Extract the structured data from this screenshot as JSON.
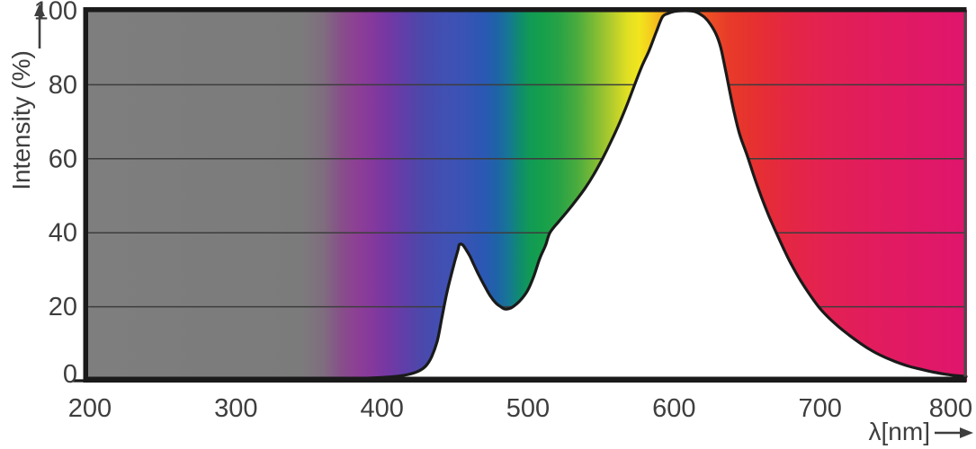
{
  "chart_data": {
    "type": "area",
    "x_axis": {
      "label": "λ[nm]",
      "ticks": [
        200,
        300,
        400,
        500,
        600,
        700,
        800
      ],
      "range": [
        200,
        800
      ]
    },
    "y_axis": {
      "label": "Intensity (%)",
      "ticks": [
        0,
        20,
        40,
        60,
        80,
        100
      ],
      "range": [
        0,
        100
      ]
    },
    "gridlines_at": [
      20,
      40,
      60,
      80
    ],
    "legend": "none",
    "series": [
      {
        "points": [
          [
            200,
            0
          ],
          [
            345,
            0
          ],
          [
            360,
            0.2
          ],
          [
            372,
            0.4
          ],
          [
            385,
            0.6
          ],
          [
            400,
            0.9
          ],
          [
            410,
            1.2
          ],
          [
            418,
            1.7
          ],
          [
            425,
            2.6
          ],
          [
            430,
            4
          ],
          [
            434,
            6.5
          ],
          [
            438,
            11
          ],
          [
            441,
            17
          ],
          [
            444,
            23
          ],
          [
            447,
            28
          ],
          [
            450,
            32.5
          ],
          [
            452,
            35.3
          ],
          [
            453,
            36.8
          ],
          [
            455,
            36.8
          ],
          [
            457,
            35.8
          ],
          [
            460,
            33.8
          ],
          [
            463,
            31.3
          ],
          [
            466,
            28.8
          ],
          [
            470,
            25.8
          ],
          [
            474,
            23
          ],
          [
            478,
            21
          ],
          [
            481,
            20.1
          ],
          [
            484,
            19.4
          ],
          [
            488,
            19.6
          ],
          [
            492,
            20.7
          ],
          [
            496,
            22.3
          ],
          [
            500,
            24.6
          ],
          [
            504,
            28.3
          ],
          [
            508,
            33
          ],
          [
            512,
            36.6
          ],
          [
            515,
            40
          ],
          [
            521,
            43
          ],
          [
            527,
            45.8
          ],
          [
            533,
            48.8
          ],
          [
            539,
            52
          ],
          [
            545,
            55.7
          ],
          [
            551,
            60
          ],
          [
            557,
            64.8
          ],
          [
            563,
            70
          ],
          [
            568,
            74.8
          ],
          [
            573,
            80
          ],
          [
            578,
            85
          ],
          [
            583,
            89.3
          ],
          [
            588,
            94.5
          ],
          [
            592,
            98.3
          ],
          [
            596,
            99.3
          ],
          [
            600,
            99.8
          ],
          [
            605,
            100
          ],
          [
            610,
            100
          ],
          [
            614,
            99.8
          ],
          [
            617,
            99.3
          ],
          [
            621,
            98.2
          ],
          [
            625,
            96.3
          ],
          [
            629,
            93.5
          ],
          [
            632,
            90
          ],
          [
            635,
            84.5
          ],
          [
            638,
            78.5
          ],
          [
            641,
            72.8
          ],
          [
            645,
            66.5
          ],
          [
            650,
            61
          ],
          [
            655,
            55
          ],
          [
            660,
            49.5
          ],
          [
            665,
            44.5
          ],
          [
            670,
            40
          ],
          [
            675,
            35.7
          ],
          [
            680,
            31.7
          ],
          [
            686,
            27.5
          ],
          [
            692,
            23.8
          ],
          [
            699,
            20
          ],
          [
            706,
            17
          ],
          [
            713,
            14.5
          ],
          [
            720,
            12.3
          ],
          [
            728,
            10
          ],
          [
            736,
            8
          ],
          [
            744,
            6.4
          ],
          [
            752,
            5.1
          ],
          [
            760,
            4
          ],
          [
            769,
            3.1
          ],
          [
            778,
            2.3
          ],
          [
            787,
            1.7
          ],
          [
            794,
            1.35
          ],
          [
            800,
            1.15
          ]
        ]
      }
    ],
    "spectrum_gradient": [
      {
        "nm": 198.8,
        "color": "#7E7E7E"
      },
      {
        "nm": 345,
        "color": "#7C7B7C"
      },
      {
        "nm": 360,
        "color": "#7F6D7E"
      },
      {
        "nm": 372,
        "color": "#874F89"
      },
      {
        "nm": 382,
        "color": "#8D4094"
      },
      {
        "nm": 392,
        "color": "#87399C"
      },
      {
        "nm": 404,
        "color": "#7438A3"
      },
      {
        "nm": 416,
        "color": "#5F3FA9"
      },
      {
        "nm": 428,
        "color": "#4A49AB"
      },
      {
        "nm": 442,
        "color": "#4150B3"
      },
      {
        "nm": 455,
        "color": "#3A53B4"
      },
      {
        "nm": 470,
        "color": "#2A58B4"
      },
      {
        "nm": 479,
        "color": "#1E64A6"
      },
      {
        "nm": 487,
        "color": "#167894"
      },
      {
        "nm": 494,
        "color": "#108B70"
      },
      {
        "nm": 501,
        "color": "#119A55"
      },
      {
        "nm": 510,
        "color": "#15A04B"
      },
      {
        "nm": 522,
        "color": "#2AA345"
      },
      {
        "nm": 534,
        "color": "#4BAC3E"
      },
      {
        "nm": 546,
        "color": "#7FBB35"
      },
      {
        "nm": 558,
        "color": "#B5CD2C"
      },
      {
        "nm": 568,
        "color": "#E0DF23"
      },
      {
        "nm": 576,
        "color": "#F2E51E"
      },
      {
        "nm": 585,
        "color": "#F5C91D"
      },
      {
        "nm": 594,
        "color": "#F4A41E"
      },
      {
        "nm": 603,
        "color": "#F18B1F"
      },
      {
        "nm": 613,
        "color": "#EE6B22"
      },
      {
        "nm": 624,
        "color": "#EB4F26"
      },
      {
        "nm": 637,
        "color": "#E83B29"
      },
      {
        "nm": 652,
        "color": "#E6322F"
      },
      {
        "nm": 668,
        "color": "#E52A3B"
      },
      {
        "nm": 686,
        "color": "#E42548"
      },
      {
        "nm": 706,
        "color": "#E32153"
      },
      {
        "nm": 728,
        "color": "#E21D5B"
      },
      {
        "nm": 752,
        "color": "#E11A62"
      },
      {
        "nm": 775,
        "color": "#E01867"
      },
      {
        "nm": 800,
        "color": "#DF166C"
      }
    ],
    "colors": {
      "curve": "#1a1a1a",
      "under_curve_fill": "#ffffff",
      "grid": "#3d3d3d",
      "frame": "#1a1a1a",
      "right_border": "#4a4a4a",
      "tick_text": "#3e3e3e"
    }
  }
}
